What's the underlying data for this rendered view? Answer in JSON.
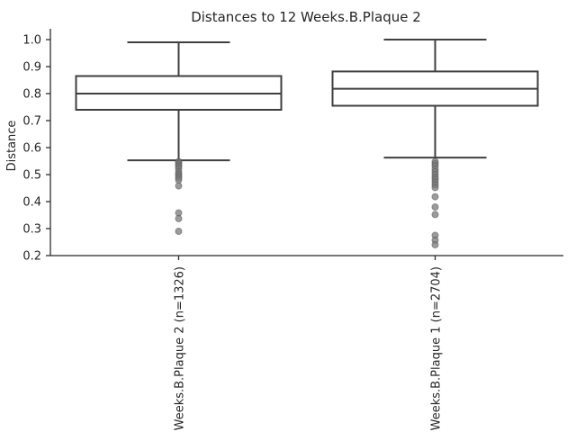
{
  "chart_data": {
    "type": "box",
    "title": "Distances to 12 Weeks.B.Plaque 2",
    "xlabel": "",
    "ylabel": "Distance",
    "ylim": [
      0.2,
      1.04
    ],
    "yticks": [
      0.2,
      0.3,
      0.4,
      0.5,
      0.6,
      0.7,
      0.8,
      0.9,
      1.0
    ],
    "ytick_labels": [
      "0.2",
      "0.3",
      "0.4",
      "0.5",
      "0.6",
      "0.7",
      "0.8",
      "0.9",
      "1.0"
    ],
    "categories": [
      "12 Weeks.B.Plaque 2 (n=1326)",
      "12 Weeks.B.Plaque 1 (n=2704)"
    ],
    "boxes": [
      {
        "whisker_low": 0.553,
        "q1": 0.74,
        "median": 0.8,
        "q3": 0.865,
        "whisker_high": 0.99,
        "outliers": [
          0.548,
          0.542,
          0.536,
          0.53,
          0.522,
          0.51,
          0.502,
          0.495,
          0.488,
          0.48,
          0.458,
          0.358,
          0.337,
          0.29
        ]
      },
      {
        "whisker_low": 0.563,
        "q1": 0.755,
        "median": 0.818,
        "q3": 0.882,
        "whisker_high": 1.0,
        "outliers": [
          0.548,
          0.54,
          0.532,
          0.52,
          0.51,
          0.5,
          0.49,
          0.482,
          0.472,
          0.462,
          0.452,
          0.418,
          0.38,
          0.352,
          0.275,
          0.257,
          0.24
        ]
      }
    ],
    "colors": {
      "box_fill": "#ffffff",
      "box_edge": "#3f3f3f",
      "outlier": "#7a7a7a"
    },
    "grid": false,
    "legend": "none"
  }
}
